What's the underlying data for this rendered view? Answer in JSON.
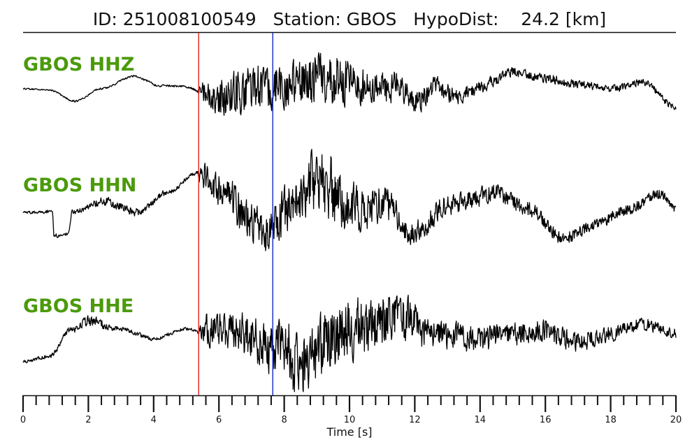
{
  "chart_data": {
    "type": "line",
    "title": "ID: 251008100549   Station: GBOS   HypoDist:    24.2 [km]",
    "xlabel": "Time [s]",
    "xlim": [
      0,
      20
    ],
    "major_ticks": [
      0,
      2,
      4,
      6,
      8,
      10,
      12,
      14,
      16,
      18,
      20
    ],
    "tick_labels": [
      "0",
      "2",
      "4",
      "6",
      "8",
      "10",
      "12",
      "14",
      "16",
      "18",
      "20"
    ],
    "minor_tick_step": 0.4,
    "grid": false,
    "markers": [
      {
        "time": 5.38,
        "color": "#e8302e"
      },
      {
        "time": 7.65,
        "color": "#2033c9"
      }
    ],
    "trace_color": "#000000",
    "label_color": "#4b9a0c",
    "series": [
      {
        "name": "GBOS HHZ",
        "keypoints": [
          [
            0,
            0.05
          ],
          [
            0.8,
            0.02
          ],
          [
            1.6,
            -0.25
          ],
          [
            2.4,
            0.05
          ],
          [
            3.4,
            0.35
          ],
          [
            4.2,
            0.12
          ],
          [
            5.0,
            0.1
          ],
          [
            5.38,
            0.0
          ],
          [
            6.0,
            -0.2
          ],
          [
            7.0,
            0.1
          ],
          [
            8.0,
            0.12
          ],
          [
            9.5,
            0.3
          ],
          [
            10.5,
            0.1
          ],
          [
            11.5,
            0.1
          ],
          [
            12.0,
            -0.3
          ],
          [
            12.7,
            0.1
          ],
          [
            13.3,
            -0.15
          ],
          [
            14.0,
            0.1
          ],
          [
            15.0,
            0.45
          ],
          [
            16.0,
            0.3
          ],
          [
            17.0,
            0.15
          ],
          [
            18.0,
            0.05
          ],
          [
            19.0,
            0.2
          ],
          [
            20.0,
            -0.4
          ]
        ],
        "envelope": [
          [
            0,
            0.02
          ],
          [
            5.3,
            0.03
          ],
          [
            5.5,
            0.3
          ],
          [
            6.5,
            0.6
          ],
          [
            8.0,
            0.55
          ],
          [
            9.5,
            0.7
          ],
          [
            11.0,
            0.4
          ],
          [
            12.0,
            0.3
          ],
          [
            13.5,
            0.2
          ],
          [
            15.0,
            0.12
          ],
          [
            20.0,
            0.08
          ]
        ]
      },
      {
        "name": "GBOS HHN",
        "keypoints": [
          [
            0,
            -0.05
          ],
          [
            0.9,
            -0.05
          ],
          [
            0.95,
            -0.5
          ],
          [
            1.4,
            -0.45
          ],
          [
            1.5,
            -0.05
          ],
          [
            2.5,
            0.15
          ],
          [
            3.5,
            -0.05
          ],
          [
            4.5,
            0.35
          ],
          [
            5.3,
            0.7
          ],
          [
            6.0,
            0.4
          ],
          [
            7.0,
            -0.2
          ],
          [
            7.6,
            -0.45
          ],
          [
            8.2,
            0.1
          ],
          [
            9.0,
            0.6
          ],
          [
            10.0,
            0.0
          ],
          [
            11.0,
            0.1
          ],
          [
            12.0,
            -0.45
          ],
          [
            13.0,
            0.1
          ],
          [
            14.5,
            0.3
          ],
          [
            15.5,
            0.0
          ],
          [
            16.5,
            -0.55
          ],
          [
            17.5,
            -0.3
          ],
          [
            18.5,
            0.0
          ],
          [
            19.5,
            0.3
          ],
          [
            20.0,
            0.0
          ]
        ],
        "envelope": [
          [
            0,
            0.03
          ],
          [
            1.8,
            0.05
          ],
          [
            2.5,
            0.1
          ],
          [
            5.3,
            0.04
          ],
          [
            5.5,
            0.3
          ],
          [
            7.0,
            0.45
          ],
          [
            8.5,
            0.5
          ],
          [
            9.0,
            0.8
          ],
          [
            10.5,
            0.45
          ],
          [
            12.0,
            0.25
          ],
          [
            14.0,
            0.2
          ],
          [
            16.0,
            0.15
          ],
          [
            18.0,
            0.12
          ],
          [
            20.0,
            0.1
          ]
        ]
      },
      {
        "name": "GBOS HHE",
        "keypoints": [
          [
            0,
            -0.55
          ],
          [
            0.8,
            -0.45
          ],
          [
            1.5,
            0.1
          ],
          [
            2.0,
            0.25
          ],
          [
            3.0,
            0.1
          ],
          [
            4.0,
            -0.1
          ],
          [
            5.0,
            0.1
          ],
          [
            5.38,
            0.05
          ],
          [
            6.5,
            0.1
          ],
          [
            7.7,
            -0.3
          ],
          [
            8.6,
            -0.55
          ],
          [
            9.5,
            0.0
          ],
          [
            10.5,
            0.15
          ],
          [
            11.5,
            0.3
          ],
          [
            12.5,
            0.0
          ],
          [
            14.0,
            -0.1
          ],
          [
            16.0,
            0.05
          ],
          [
            17.0,
            -0.15
          ],
          [
            18.0,
            0.0
          ],
          [
            19.0,
            0.2
          ],
          [
            20.0,
            0.0
          ]
        ],
        "envelope": [
          [
            0,
            0.03
          ],
          [
            1.2,
            0.05
          ],
          [
            2.0,
            0.12
          ],
          [
            3.0,
            0.05
          ],
          [
            5.3,
            0.03
          ],
          [
            5.5,
            0.35
          ],
          [
            7.0,
            0.5
          ],
          [
            8.5,
            0.75
          ],
          [
            10.0,
            0.65
          ],
          [
            11.7,
            0.5
          ],
          [
            12.5,
            0.3
          ],
          [
            15.0,
            0.25
          ],
          [
            20.0,
            0.12
          ]
        ]
      }
    ]
  }
}
